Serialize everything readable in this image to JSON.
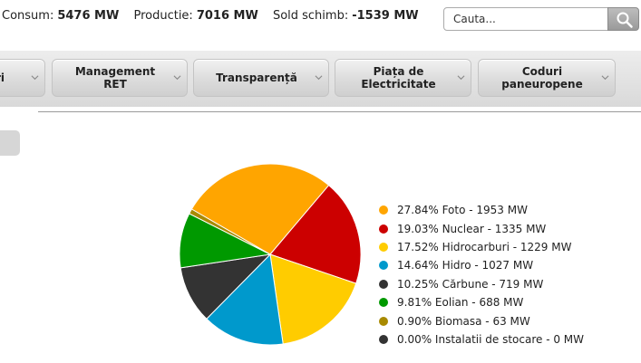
{
  "stats": [
    {
      "label": "Consum:",
      "value": "5476 MW"
    },
    {
      "label": "Productie:",
      "value": "7016 MW"
    },
    {
      "label": "Sold schimb:",
      "value": "-1539 MW"
    }
  ],
  "search": {
    "placeholder": "Cauta...",
    "icon": "magnifier-icon"
  },
  "nav": {
    "items": [
      {
        "label": "ri"
      },
      {
        "label": "Management\nRET"
      },
      {
        "label": "Transparență"
      },
      {
        "label": "Piața de\nElectricitate"
      },
      {
        "label": "Coduri\npaneuropene"
      }
    ]
  },
  "chart_data": {
    "type": "pie",
    "title": "",
    "start_angle_deg": 300,
    "legend_position": "right",
    "slices": [
      {
        "name": "Foto",
        "percent": 27.84,
        "value": 1953,
        "unit": "MW",
        "color": "#FFA500",
        "label": "27.84% Foto - 1953 MW"
      },
      {
        "name": "Nuclear",
        "percent": 19.03,
        "value": 1335,
        "unit": "MW",
        "color": "#CC0000",
        "label": "19.03% Nuclear - 1335 MW"
      },
      {
        "name": "Hidrocarburi",
        "percent": 17.52,
        "value": 1229,
        "unit": "MW",
        "color": "#FFCC00",
        "label": "17.52% Hidrocarburi - 1229 MW"
      },
      {
        "name": "Hidro",
        "percent": 14.64,
        "value": 1027,
        "unit": "MW",
        "color": "#0099CC",
        "label": "14.64% Hidro - 1027 MW"
      },
      {
        "name": "Cărbune",
        "percent": 10.25,
        "value": 719,
        "unit": "MW",
        "color": "#333333",
        "label": "10.25% Cărbune - 719 MW"
      },
      {
        "name": "Eolian",
        "percent": 9.81,
        "value": 688,
        "unit": "MW",
        "color": "#009900",
        "label": "9.81% Eolian - 688 MW"
      },
      {
        "name": "Biomasa",
        "percent": 0.9,
        "value": 63,
        "unit": "MW",
        "color": "#A88A00",
        "label": "0.90% Biomasa - 63 MW"
      },
      {
        "name": "Instalatii de stocare",
        "percent": 0.0,
        "value": 0,
        "unit": "MW",
        "color": "#333333",
        "label": "0.00% Instalatii de stocare - 0 MW"
      }
    ]
  }
}
